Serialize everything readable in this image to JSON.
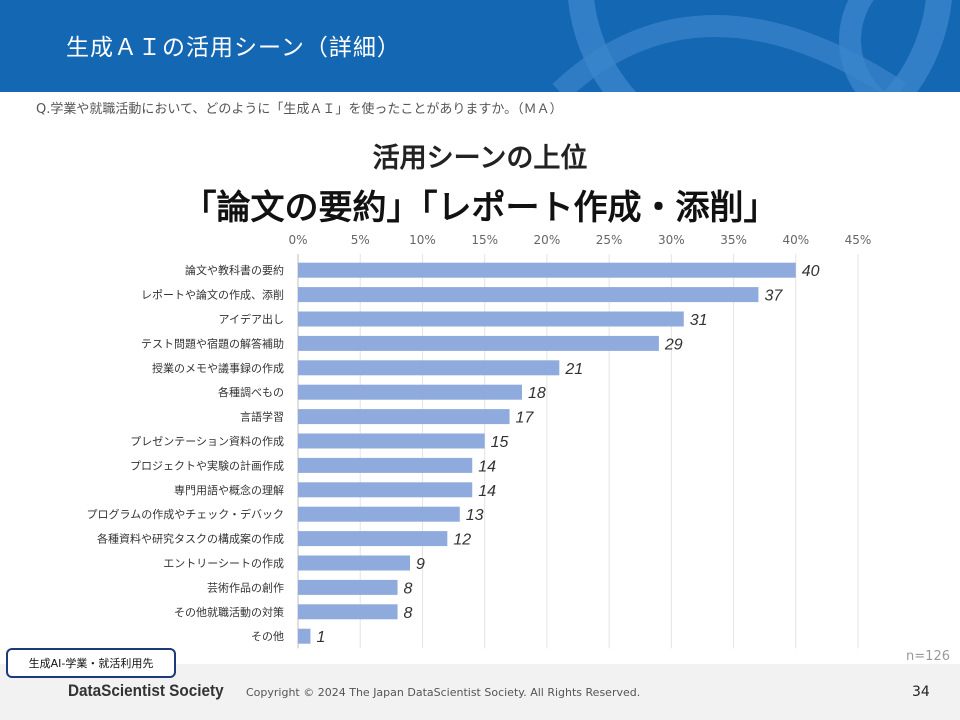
{
  "header": {
    "title": "生成ＡＩの活用シーン（詳細）"
  },
  "question": "Q.学業や就職活動において、どのように「生成ＡＩ」を使ったことがありますか。（ＭＡ）",
  "headline": {
    "line1": "活用シーンの上位",
    "line2": "「論文の要約」「レポート作成・添削」"
  },
  "chart_data": {
    "type": "bar",
    "orientation": "horizontal",
    "title": "",
    "xlabel": "",
    "ylabel": "",
    "xlim": [
      0,
      45
    ],
    "x_ticks": [
      "0%",
      "5%",
      "10%",
      "15%",
      "20%",
      "25%",
      "30%",
      "35%",
      "40%",
      "45%"
    ],
    "grid": true,
    "categories": [
      "論文や教科書の要約",
      "レポートや論文の作成、添削",
      "アイデア出し",
      "テスト問題や宿題の解答補助",
      "授業のメモや議事録の作成",
      "各種調べもの",
      "言語学習",
      "プレゼンテーション資料の作成",
      "プロジェクトや実験の計画作成",
      "専門用語や概念の理解",
      "プログラムの作成やチェック・デバック",
      "各種資料や研究タスクの構成案の作成",
      "エントリーシートの作成",
      "芸術作品の創作",
      "その他就職活動の対策",
      "その他"
    ],
    "values": [
      40,
      37,
      31,
      29,
      21,
      18,
      17,
      15,
      14,
      14,
      13,
      12,
      9,
      8,
      8,
      1
    ],
    "bar_color": "#8faadc"
  },
  "sample_size": "n=126",
  "tag_label": "生成AI-学業・就活利用先",
  "footer": {
    "logo": "DataScientist Society",
    "copyright": "Copyright © 2024  The Japan DataScientist Society. All Rights Reserved.",
    "page": "34"
  }
}
